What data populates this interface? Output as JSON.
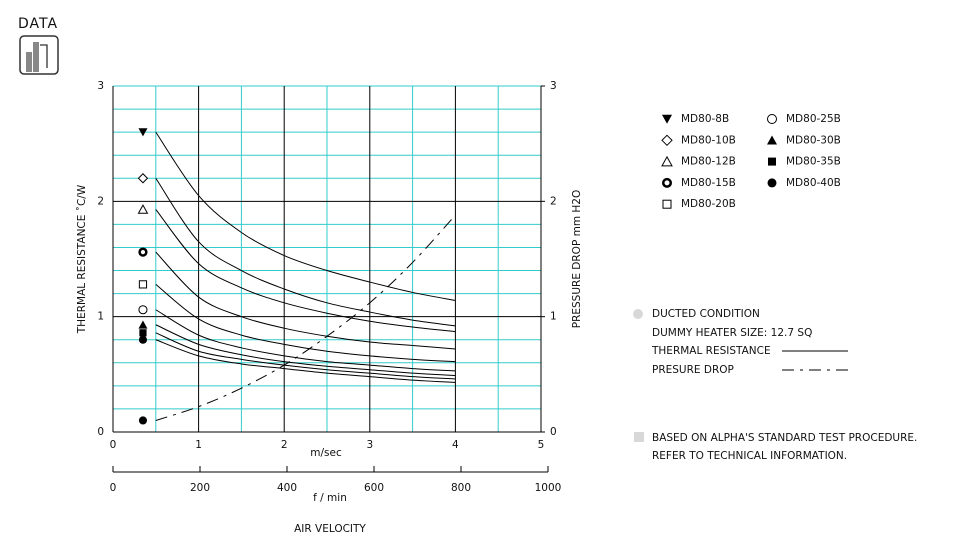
{
  "header": {
    "label": "DATA"
  },
  "chart_data": {
    "type": "line",
    "x_label": "m/sec",
    "x2_label": "f / min",
    "y_label": "THERMAL  RESISTANCE   ˚C/W",
    "y2_label": "PRESSURE  DROP    mm H2O",
    "footer": "AIR VELOCITY",
    "x": [
      0.5,
      1,
      1.5,
      2,
      2.5,
      3,
      3.5,
      4
    ],
    "xlim": [
      0,
      5
    ],
    "xticks": [
      0,
      1,
      2,
      3,
      4,
      5
    ],
    "x2lim": [
      0,
      1000
    ],
    "x2ticks": [
      0,
      200,
      400,
      600,
      800,
      1000
    ],
    "ylim": [
      0,
      3
    ],
    "yticks": [
      0,
      1,
      2,
      3
    ],
    "y2lim": [
      0,
      3
    ],
    "y2ticks": [
      0,
      1,
      2,
      3
    ],
    "grid": true,
    "grid_color": "#33cccc",
    "minor_xticks": [
      0.5,
      1.5,
      2.5,
      3.5,
      4.5
    ],
    "minor_yticks": [
      0.2,
      0.4,
      0.6,
      0.8,
      1.2,
      1.4,
      1.6,
      1.8,
      2.2,
      2.4,
      2.6,
      2.8
    ],
    "series": [
      {
        "name": "MD80-8B",
        "color": "#000000",
        "marker": "triangle-down",
        "values": [
          2.6,
          2.05,
          1.73,
          1.53,
          1.4,
          1.3,
          1.21,
          1.14
        ]
      },
      {
        "name": "MD80-10B",
        "color": "#000000",
        "marker": "diamond",
        "values": [
          2.2,
          1.65,
          1.4,
          1.24,
          1.12,
          1.04,
          0.97,
          0.92
        ]
      },
      {
        "name": "MD80-12B",
        "color": "#000000",
        "marker": "triangle-open",
        "values": [
          1.93,
          1.46,
          1.25,
          1.12,
          1.03,
          0.96,
          0.91,
          0.87
        ]
      },
      {
        "name": "MD80-15B",
        "color": "#000000",
        "marker": "ring",
        "values": [
          1.56,
          1.17,
          1.0,
          0.9,
          0.83,
          0.78,
          0.75,
          0.72
        ]
      },
      {
        "name": "MD80-20B",
        "color": "#000000",
        "marker": "square-open",
        "values": [
          1.28,
          0.98,
          0.84,
          0.76,
          0.7,
          0.66,
          0.63,
          0.61
        ]
      },
      {
        "name": "MD80-25B",
        "color": "#000000",
        "marker": "circle-open",
        "values": [
          1.06,
          0.84,
          0.73,
          0.66,
          0.61,
          0.58,
          0.55,
          0.53
        ]
      },
      {
        "name": "MD80-30B",
        "color": "#000000",
        "marker": "triangle",
        "values": [
          0.93,
          0.76,
          0.67,
          0.61,
          0.57,
          0.54,
          0.51,
          0.49
        ]
      },
      {
        "name": "MD80-35B",
        "color": "#000000",
        "marker": "square",
        "values": [
          0.86,
          0.7,
          0.63,
          0.58,
          0.54,
          0.51,
          0.48,
          0.46
        ]
      },
      {
        "name": "MD80-40B",
        "color": "#000000",
        "marker": "circle",
        "values": [
          0.8,
          0.66,
          0.59,
          0.55,
          0.51,
          0.48,
          0.45,
          0.43
        ]
      },
      {
        "name": "PRESURE DROP",
        "color": "#000000",
        "axis": "y2",
        "dash": "dashed",
        "marker": "circle",
        "values": [
          0.1,
          0.22,
          0.38,
          0.58,
          0.83,
          1.12,
          1.47,
          1.88
        ]
      }
    ]
  },
  "notes": {
    "condition": "DUCTED CONDITION",
    "heater": "DUMMY HEATER SIZE: 12.7 SQ",
    "thermal": "THERMAL RESISTANCE",
    "basis": "BASED ON ALPHA'S STANDARD TEST PROCEDURE.",
    "refer": "REFER TO TECHNICAL INFORMATION."
  }
}
